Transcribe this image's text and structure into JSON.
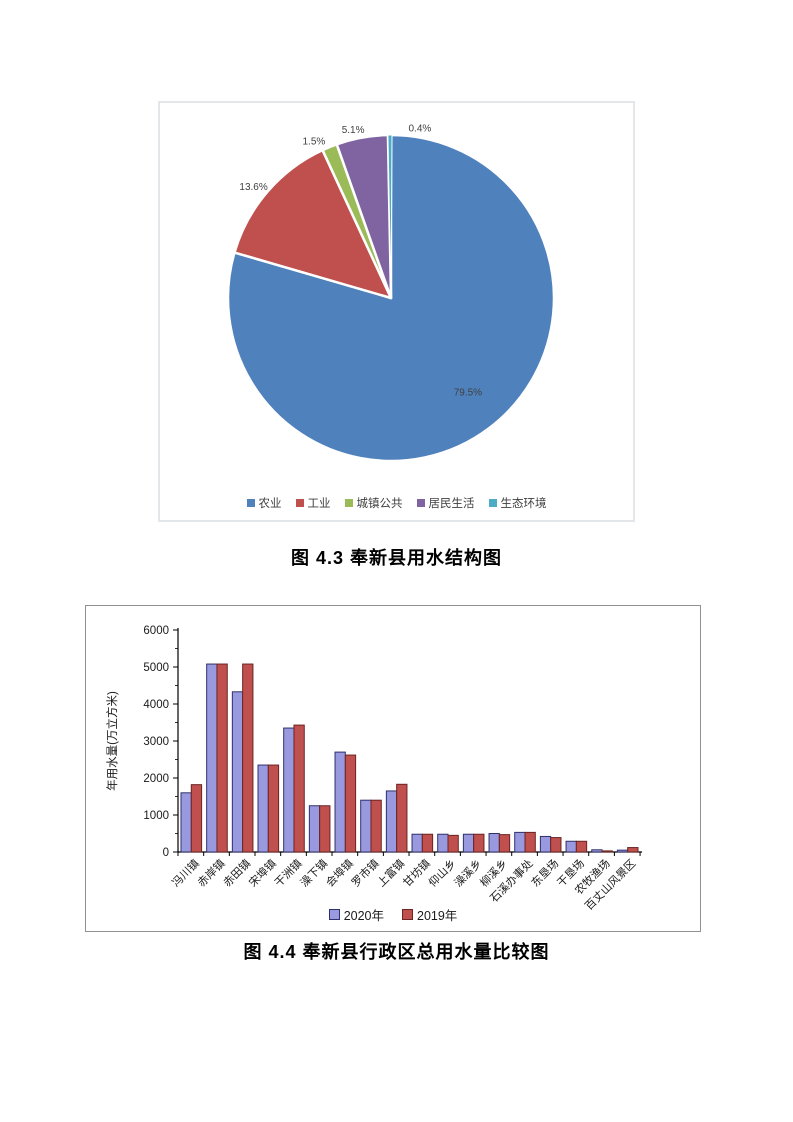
{
  "page": {
    "caption_fig43": "图 4.3  奉新县用水结构图",
    "caption_fig44": "图 4.4  奉新县行政区总用水量比较图"
  },
  "chart_data": [
    {
      "type": "pie",
      "title": "奉新县用水结构图",
      "legend_position": "bottom",
      "slices": [
        {
          "label": "农业",
          "value": 79.5,
          "display": "79.5%",
          "color": "#4F81BD"
        },
        {
          "label": "工业",
          "value": 13.6,
          "display": "13.6%",
          "color": "#C0504D"
        },
        {
          "label": "城镇公共",
          "value": 1.5,
          "display": "1.5%",
          "color": "#9BBB59"
        },
        {
          "label": "居民生活",
          "value": 5.1,
          "display": "5.1%",
          "color": "#8064A2"
        },
        {
          "label": "生态环境",
          "value": 0.4,
          "display": "0.4%",
          "color": "#4BACC6"
        }
      ]
    },
    {
      "type": "bar",
      "title": "奉新县行政区总用水量比较图",
      "ylabel": "年用水量(万立方米)",
      "ylim": [
        0,
        6000
      ],
      "ytick_interval": 1000,
      "ytick_minor_interval": 500,
      "grid": false,
      "legend_position": "bottom",
      "categories": [
        "冯川镇",
        "赤岸镇",
        "赤田镇",
        "宋埠镇",
        "干洲镇",
        "澡下镇",
        "会埠镇",
        "罗市镇",
        "上富镇",
        "甘坊镇",
        "仰山乡",
        "澡溪乡",
        "柳溪乡",
        "石溪办事处",
        "东垦场",
        "干垦场",
        "农牧渔场",
        "百丈山风景区"
      ],
      "series": [
        {
          "name": "2020年",
          "color": "#9999E0",
          "border": "#30306B",
          "values": [
            1600,
            5080,
            4330,
            2350,
            3350,
            1250,
            2700,
            1400,
            1650,
            480,
            480,
            480,
            500,
            530,
            420,
            290,
            60,
            50
          ]
        },
        {
          "name": "2019年",
          "color": "#C0504D",
          "border": "#6B2423",
          "values": [
            1820,
            5080,
            5080,
            2350,
            3430,
            1250,
            2620,
            1400,
            1830,
            480,
            450,
            480,
            470,
            530,
            390,
            290,
            30,
            120
          ]
        }
      ]
    }
  ]
}
